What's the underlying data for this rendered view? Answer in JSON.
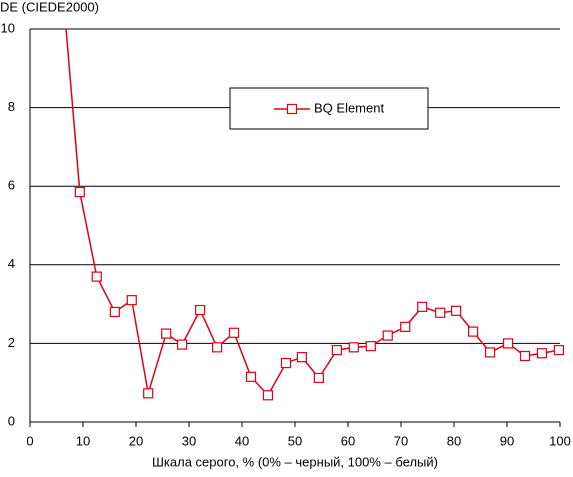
{
  "chart_data": {
    "type": "line",
    "title": "DE (CIEDE2000)",
    "x_label": "Шкала серого, % (0% – черный, 100% – белый)",
    "series": [
      {
        "name": "BQ Element",
        "color": "#e0001a",
        "x": [
          6.8,
          9.4,
          12.6,
          16.0,
          19.2,
          22.3,
          25.7,
          28.7,
          32.1,
          35.3,
          38.5,
          41.7,
          44.9,
          48.3,
          51.3,
          54.5,
          57.9,
          61.1,
          64.3,
          67.5,
          70.8,
          74.0,
          77.4,
          80.4,
          83.6,
          86.8,
          90.2,
          93.4,
          96.6,
          99.8
        ],
        "values": [
          10,
          5.85,
          3.7,
          2.8,
          3.1,
          0.73,
          2.25,
          1.97,
          2.85,
          1.9,
          2.27,
          1.15,
          0.68,
          1.5,
          1.65,
          1.12,
          1.83,
          1.9,
          1.93,
          2.2,
          2.42,
          2.93,
          2.78,
          2.83,
          2.3,
          1.77,
          2.0,
          1.68,
          1.75,
          1.83
        ]
      }
    ],
    "xlim": [
      0,
      100
    ],
    "xticks": [
      0,
      10,
      20,
      30,
      40,
      50,
      60,
      70,
      80,
      90,
      100
    ],
    "ylim": [
      0,
      10
    ],
    "yticks": [
      0,
      2,
      4,
      6,
      8,
      10
    ],
    "grid": true
  }
}
